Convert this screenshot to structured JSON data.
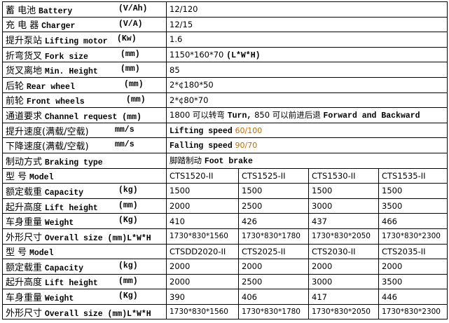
{
  "specs": [
    {
      "zh": "蓄  电池",
      "en": "Battery",
      "unit": "(V/Ah)",
      "value": "12/120"
    },
    {
      "zh": "充 电 器",
      "en": "Charger",
      "unit": "(V/A)",
      "value": "12/15"
    },
    {
      "zh": "提升泵站",
      "en": "Lifting motor",
      "unit": "(Kw)",
      "value": "1.6"
    },
    {
      "zh": "折弯货叉",
      "en": "Fork size",
      "unit": "(mm)",
      "value": "1150*160*70",
      "value_en": "(L*W*H)"
    },
    {
      "zh": "货叉离地",
      "en": "Min. Height",
      "unit": "(mm)",
      "value": "85"
    },
    {
      "zh": "后轮",
      "en": "Rear wheel",
      "unit": "(mm)",
      "value": "2*¢180*50"
    },
    {
      "zh": "前轮",
      "en": "Front wheels",
      "unit": "(mm)",
      "value": "2*¢80*70"
    },
    {
      "zh": "通道要求",
      "en": "Channel request (mm)",
      "unit": "",
      "value": "1800 可以转弯",
      "value_en": "Turn,",
      "value2": "850 可以前进后退",
      "value_en2": "Forward and Backward"
    },
    {
      "zh": "提升速度(满载/空载)",
      "en": "",
      "unit": "mm/s",
      "value_en": "Lifting speed",
      "value_color": "60/100"
    },
    {
      "zh": "下降速度(满载/空载)",
      "en": "",
      "unit": "mm/s",
      "value_en": "Falling speed",
      "value_color": "90/70"
    },
    {
      "zh": "制动方式",
      "en": "Braking type",
      "unit": "",
      "value": "脚踏制动",
      "value_en": "Foot brake"
    }
  ],
  "model_groups": [
    {
      "rows": [
        {
          "zh": "型    号",
          "en": "Model",
          "unit": "",
          "cells": [
            "CTS1520-II",
            "CTS1525-II",
            "CTS1530-II",
            "CTS1535-II"
          ]
        },
        {
          "zh": "额定载重",
          "en": "Capacity",
          "unit": "(kg)",
          "cells": [
            "1500",
            "1500",
            "1500",
            "1500"
          ]
        },
        {
          "zh": "起升高度",
          "en": "Lift height",
          "unit": "(mm)",
          "cells": [
            "2000",
            "2500",
            "3000",
            "3500"
          ]
        },
        {
          "zh": "车身重量",
          "en": "Weight",
          "unit": "(Kg)",
          "cells": [
            "410",
            "426",
            "437",
            "466"
          ]
        },
        {
          "zh": "外形尺寸",
          "en": "Overall size (mm)L*W*H",
          "unit": "",
          "cells": [
            "1730*830*1560",
            "1730*830*1780",
            "1730*830*2050",
            "1730*830*2300"
          ]
        }
      ]
    },
    {
      "rows": [
        {
          "zh": "型    号",
          "en": "Model",
          "unit": "",
          "cells": [
            "CTSDD2020-II",
            "CTS2025-II",
            "CTS2030-II",
            "CTS2035-II"
          ]
        },
        {
          "zh": "额定载重",
          "en": "Capacity",
          "unit": "(kg)",
          "cells": [
            "2000",
            "2000",
            "2000",
            "2000"
          ]
        },
        {
          "zh": "起升高度",
          "en": "Lift height",
          "unit": "(mm)",
          "cells": [
            "2000",
            "2500",
            "3000",
            "3500"
          ]
        },
        {
          "zh": "车身重量",
          "en": "Weight",
          "unit": "(Kg)",
          "cells": [
            "390",
            "406",
            "417",
            "446"
          ]
        },
        {
          "zh": "外形尺寸",
          "en": "Overall size (mm)L*W*H",
          "unit": "",
          "cells": [
            "1730*830*1560",
            "1730*830*1780",
            "1730*830*2050",
            "1730*830*2300"
          ]
        }
      ]
    }
  ],
  "colors": {
    "speed_value": "#c07000"
  }
}
